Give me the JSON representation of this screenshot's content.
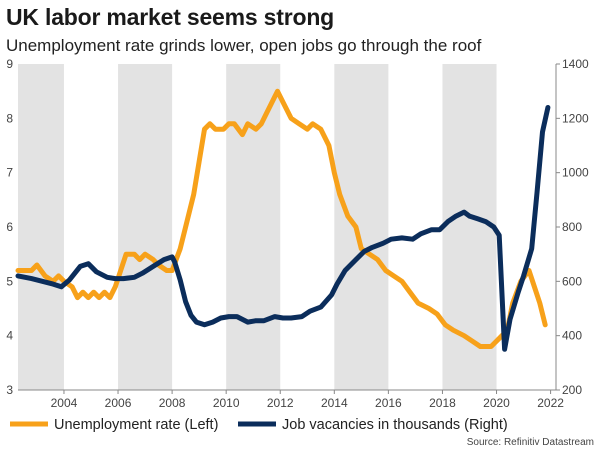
{
  "chart_data": {
    "type": "line",
    "title": "UK labor market seems strong",
    "subtitle": "Unemployment rate grinds lower, open jobs go through the roof",
    "source": "Source: Refinitiv Datastream",
    "x_ticks": [
      "2004",
      "2006",
      "2008",
      "2010",
      "2012",
      "2014",
      "2016",
      "2018",
      "2020",
      "2022"
    ],
    "xlim": [
      2002.3,
      2022.2
    ],
    "y_left": {
      "lim": [
        3,
        9
      ],
      "ticks": [
        "3",
        "4",
        "5",
        "6",
        "7",
        "8",
        "9"
      ]
    },
    "y_right": {
      "lim": [
        200,
        1400
      ],
      "ticks": [
        "200",
        "400",
        "600",
        "800",
        "1000",
        "1200",
        "1400"
      ]
    },
    "shaded_bands": [
      [
        2002.3,
        2004
      ],
      [
        2006,
        2008
      ],
      [
        2010,
        2012
      ],
      [
        2014,
        2016
      ],
      [
        2018,
        2020
      ]
    ],
    "colors": {
      "unemployment": "#F7A11A",
      "vacancies": "#0B2D5B",
      "band": "#E3E3E3",
      "axis": "#888888"
    },
    "series": [
      {
        "name": "Unemployment rate (Left)",
        "axis": "left",
        "x": [
          2002.3,
          2002.8,
          2003.0,
          2003.3,
          2003.6,
          2003.8,
          2004.0,
          2004.3,
          2004.5,
          2004.7,
          2004.9,
          2005.1,
          2005.3,
          2005.5,
          2005.7,
          2005.9,
          2006.1,
          2006.3,
          2006.6,
          2006.8,
          2007.0,
          2007.3,
          2007.5,
          2007.8,
          2008.0,
          2008.3,
          2008.5,
          2008.8,
          2009.0,
          2009.2,
          2009.4,
          2009.6,
          2009.9,
          2010.1,
          2010.3,
          2010.6,
          2010.8,
          2011.1,
          2011.3,
          2011.5,
          2011.8,
          2011.9,
          2012.1,
          2012.4,
          2012.7,
          2013.0,
          2013.2,
          2013.5,
          2013.8,
          2014.0,
          2014.2,
          2014.5,
          2014.8,
          2015.0,
          2015.3,
          2015.6,
          2015.9,
          2016.2,
          2016.5,
          2016.8,
          2017.1,
          2017.5,
          2017.8,
          2018.1,
          2018.4,
          2018.8,
          2019.1,
          2019.4,
          2019.8,
          2020.0,
          2020.2,
          2020.4,
          2020.6,
          2020.9,
          2021.2,
          2021.4,
          2021.6,
          2021.8
        ],
        "values": [
          5.2,
          5.2,
          5.3,
          5.1,
          5.0,
          5.1,
          5.0,
          4.9,
          4.7,
          4.8,
          4.7,
          4.8,
          4.7,
          4.8,
          4.7,
          4.9,
          5.2,
          5.5,
          5.5,
          5.4,
          5.5,
          5.4,
          5.3,
          5.2,
          5.2,
          5.6,
          6.0,
          6.6,
          7.2,
          7.8,
          7.9,
          7.8,
          7.8,
          7.9,
          7.9,
          7.7,
          7.9,
          7.8,
          7.9,
          8.1,
          8.4,
          8.5,
          8.3,
          8.0,
          7.9,
          7.8,
          7.9,
          7.8,
          7.5,
          7.0,
          6.6,
          6.2,
          6.0,
          5.6,
          5.5,
          5.4,
          5.2,
          5.1,
          5.0,
          4.8,
          4.6,
          4.5,
          4.4,
          4.2,
          4.1,
          4.0,
          3.9,
          3.8,
          3.8,
          3.9,
          4.0,
          4.1,
          4.6,
          5.0,
          5.2,
          4.9,
          4.6,
          4.2
        ],
        "x_markers": [
          2002.3,
          2022.2
        ]
      },
      {
        "name": "Job vacancies in thousands (Right)",
        "axis": "right",
        "x": [
          2002.3,
          2002.8,
          2003.2,
          2003.6,
          2003.9,
          2004.2,
          2004.6,
          2004.9,
          2005.2,
          2005.6,
          2005.9,
          2006.2,
          2006.6,
          2006.9,
          2007.3,
          2007.7,
          2008.0,
          2008.1,
          2008.3,
          2008.5,
          2008.7,
          2008.9,
          2009.2,
          2009.5,
          2009.8,
          2010.1,
          2010.4,
          2010.8,
          2011.1,
          2011.4,
          2011.8,
          2012.1,
          2012.4,
          2012.8,
          2013.1,
          2013.5,
          2013.9,
          2014.1,
          2014.4,
          2014.8,
          2015.1,
          2015.4,
          2015.8,
          2016.1,
          2016.5,
          2016.9,
          2017.2,
          2017.6,
          2017.9,
          2018.2,
          2018.5,
          2018.8,
          2019.0,
          2019.3,
          2019.6,
          2019.9,
          2020.1,
          2020.3,
          2020.5,
          2020.8,
          2021.0,
          2021.3,
          2021.5,
          2021.7,
          2021.9
        ],
        "values": [
          620,
          610,
          600,
          590,
          580,
          605,
          655,
          665,
          635,
          615,
          610,
          610,
          615,
          630,
          655,
          680,
          690,
          670,
          605,
          525,
          475,
          450,
          440,
          450,
          465,
          470,
          470,
          450,
          455,
          455,
          470,
          465,
          465,
          470,
          490,
          505,
          550,
          590,
          640,
          680,
          710,
          725,
          740,
          755,
          760,
          755,
          775,
          790,
          790,
          820,
          840,
          855,
          840,
          830,
          820,
          800,
          770,
          350,
          460,
          560,
          620,
          720,
          930,
          1150,
          1240
        ],
        "x_markers": [
          2002.3,
          2022.2
        ]
      }
    ],
    "legend": [
      "Unemployment rate (Left)",
      "Job vacancies in thousands (Right)"
    ]
  }
}
